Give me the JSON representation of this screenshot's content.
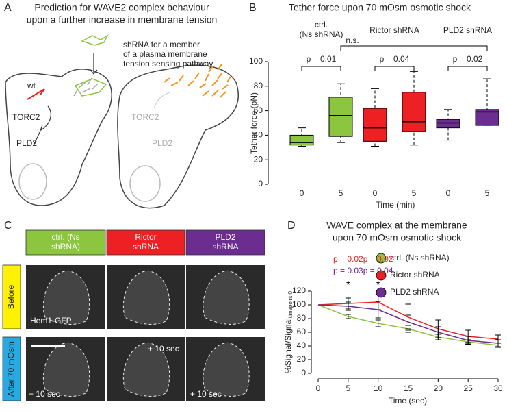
{
  "figure": {
    "panel_letters": [
      "A",
      "B",
      "C",
      "D"
    ],
    "panel_a": {
      "title": [
        "Prediction for WAVE2 complex behaviour",
        "upon a further increase in membrane tension"
      ],
      "left_label": "wt",
      "left_torc2": "TORC2",
      "left_pld2": "PLD2",
      "right_label": [
        "shRNA for a member",
        "of a plasma membrane",
        "tension sensing pathway"
      ],
      "right_torc2": "TORC2",
      "right_pld2": "PLD2"
    },
    "panel_c": {
      "columns": [
        [
          "ctrl. (Ns",
          "shRNA)"
        ],
        [
          "Rictor",
          "shRNA"
        ],
        [
          "PLD2",
          "shRNA"
        ]
      ],
      "column_colors": [
        "#8cc63e",
        "#ed2024",
        "#6b2d90"
      ],
      "rows": [
        "Before",
        "After 70 mOsm"
      ],
      "row_colors": [
        "#fff200",
        "#27aae1"
      ],
      "marker": "Hem1-GFP",
      "time_labels": [
        "+ 10 sec",
        "+ 10 sec",
        "+ 10 sec"
      ]
    }
  },
  "chart_data": [
    {
      "type": "box",
      "title": "Tether force upon 70 mOsm osmotic shock",
      "group_labels": [
        [
          "ctrl.",
          "(Ns shRNA)"
        ],
        [
          "Rictor shRNA"
        ],
        [
          "PLD2 shRNA"
        ]
      ],
      "categories": [
        "0",
        "5",
        "0",
        "5",
        "0",
        "5"
      ],
      "colors": [
        "#8cc63e",
        "#ed2024",
        "#6b2d90"
      ],
      "boxes": [
        {
          "whisker_low": 31,
          "q1": 32,
          "median": 34,
          "q3": 40,
          "whisker_high": 46
        },
        {
          "whisker_low": 34,
          "q1": 39,
          "median": 56,
          "q3": 71,
          "whisker_high": 82
        },
        {
          "whisker_low": 31,
          "q1": 35,
          "median": 46,
          "q3": 62,
          "whisker_high": 78
        },
        {
          "whisker_low": 32,
          "q1": 43,
          "median": 51,
          "q3": 75,
          "whisker_high": 92
        },
        {
          "whisker_low": 36,
          "q1": 46,
          "median": 50,
          "q3": 53,
          "whisker_high": 61
        },
        {
          "whisker_low": 48,
          "q1": 48,
          "median": 59,
          "q3": 61,
          "whisker_high": 86
        }
      ],
      "p_values": [
        "p = 0.01",
        "p = 0.04",
        "p = 0.02"
      ],
      "ns_label": "n.s.",
      "ylim": [
        0,
        100
      ],
      "yticks": [
        0,
        20,
        40,
        60,
        80,
        100
      ],
      "xlabel": "Time (min)",
      "ylabel": "Tether force (pN)"
    },
    {
      "type": "line",
      "title": [
        "WAVE complex at the membrane",
        "upon 70 mOsm osmotic shock"
      ],
      "x": [
        0,
        5,
        10,
        15,
        20,
        25,
        30
      ],
      "series": [
        {
          "name": "ctrl. (Ns shRNA)",
          "color": "#8cc63e",
          "values": [
            100,
            83,
            73,
            65,
            53,
            46,
            41
          ],
          "errors": [
            0,
            3,
            5,
            5,
            4,
            3,
            3
          ]
        },
        {
          "name": "Rictor shRNA",
          "color": "#ed2024",
          "values": [
            100,
            102,
            104,
            82,
            65,
            54,
            50
          ],
          "errors": [
            0,
            8,
            11,
            19,
            13,
            9,
            6
          ]
        },
        {
          "name": "PLD2 shRNA",
          "color": "#6b2d90",
          "values": [
            100,
            98,
            93,
            75,
            60,
            48,
            44
          ],
          "errors": [
            0,
            6,
            12,
            10,
            8,
            6,
            5
          ]
        }
      ],
      "annotations": [
        {
          "text": "p = 0.02",
          "x": 5,
          "color": "#ed2024"
        },
        {
          "text": "p = 0.02",
          "x": 10,
          "color": "#ed2024"
        },
        {
          "text": "p = 0.03",
          "x": 5,
          "color": "#6b2d90"
        },
        {
          "text": "p = 0.04",
          "x": 10,
          "color": "#6b2d90"
        },
        {
          "text": "*",
          "x": 5,
          "color": "#000000"
        },
        {
          "text": "*",
          "x": 10,
          "color": "#000000"
        }
      ],
      "xlim": [
        0,
        30
      ],
      "xticks": [
        0,
        5,
        10,
        15,
        20,
        25,
        30
      ],
      "ylim": [
        0,
        120
      ],
      "yticks": [
        0,
        20,
        40,
        60,
        80,
        100,
        120
      ],
      "xlabel": "Time (sec)",
      "ylabel": "%Signal/Signal",
      "ylabel_sub": "timepoint 0"
    }
  ]
}
